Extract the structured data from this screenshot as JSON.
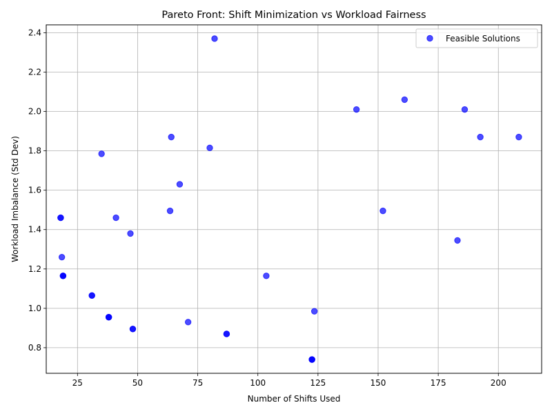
{
  "chart_data": {
    "type": "scatter",
    "title": "Pareto Front: Shift Minimization vs Workload Fairness",
    "xlabel": "Number of Shifts Used",
    "ylabel": "Workload Imbalance (Std Dev)",
    "xlim": [
      12,
      218
    ],
    "ylim": [
      0.67,
      2.44
    ],
    "xticks": [
      25,
      50,
      75,
      100,
      125,
      150,
      175,
      200
    ],
    "yticks": [
      0.8,
      1.0,
      1.2,
      1.4,
      1.6,
      1.8,
      2.0,
      2.2,
      2.4
    ],
    "grid": true,
    "legend_position": "top-right",
    "marker_color": "#0000ff",
    "marker_alpha": 0.7,
    "series": [
      {
        "name": "Feasible Solutions",
        "points": [
          [
            18,
            1.46
          ],
          [
            18,
            1.46
          ],
          [
            18.5,
            1.26
          ],
          [
            19,
            1.165
          ],
          [
            19,
            1.165
          ],
          [
            19,
            1.165
          ],
          [
            31,
            1.065
          ],
          [
            31,
            1.065
          ],
          [
            35,
            1.785
          ],
          [
            38,
            0.955
          ],
          [
            38,
            0.955
          ],
          [
            38,
            0.955
          ],
          [
            41,
            1.46
          ],
          [
            47,
            1.38
          ],
          [
            48,
            0.895
          ],
          [
            48,
            0.895
          ],
          [
            63.5,
            1.495
          ],
          [
            64,
            1.87
          ],
          [
            67.5,
            1.63
          ],
          [
            71,
            0.93
          ],
          [
            80,
            1.815
          ],
          [
            82,
            2.37
          ],
          [
            87,
            0.87
          ],
          [
            87,
            0.87
          ],
          [
            103.5,
            1.165
          ],
          [
            122.5,
            0.74
          ],
          [
            122.5,
            0.74
          ],
          [
            122.5,
            0.74
          ],
          [
            123.5,
            0.985
          ],
          [
            141,
            2.01
          ],
          [
            152,
            1.495
          ],
          [
            161,
            2.06
          ],
          [
            183,
            1.345
          ],
          [
            186,
            2.01
          ],
          [
            192.5,
            1.87
          ],
          [
            208.5,
            1.87
          ]
        ]
      }
    ]
  }
}
